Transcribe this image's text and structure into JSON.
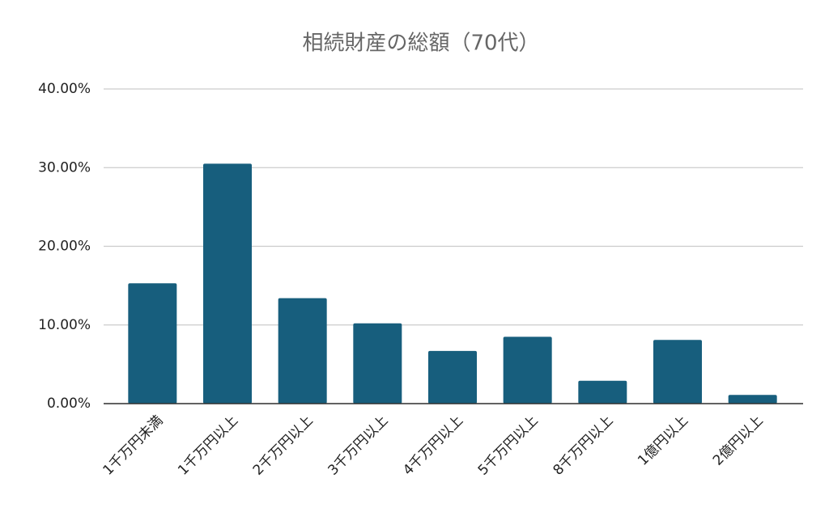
{
  "chart_data": {
    "type": "bar",
    "title": "相続財産の総額（70代）",
    "categories": [
      "1千万円未満",
      "1千万円以上",
      "2千万円以上",
      "3千万円以上",
      "4千万円以上",
      "5千万円以上",
      "8千万円以上",
      "1億円以上",
      "2億円以上"
    ],
    "values": [
      15.3,
      30.5,
      13.4,
      10.2,
      6.7,
      8.5,
      2.9,
      8.1,
      1.1
    ],
    "color": "#175e7d",
    "ylim": [
      0,
      40
    ],
    "yticks": [
      {
        "value": 0,
        "label": "0.00%"
      },
      {
        "value": 10,
        "label": "10.00%"
      },
      {
        "value": 20,
        "label": "20.00%"
      },
      {
        "value": 30,
        "label": "30.00%"
      },
      {
        "value": 40,
        "label": "40.00%"
      }
    ],
    "grid": true
  }
}
